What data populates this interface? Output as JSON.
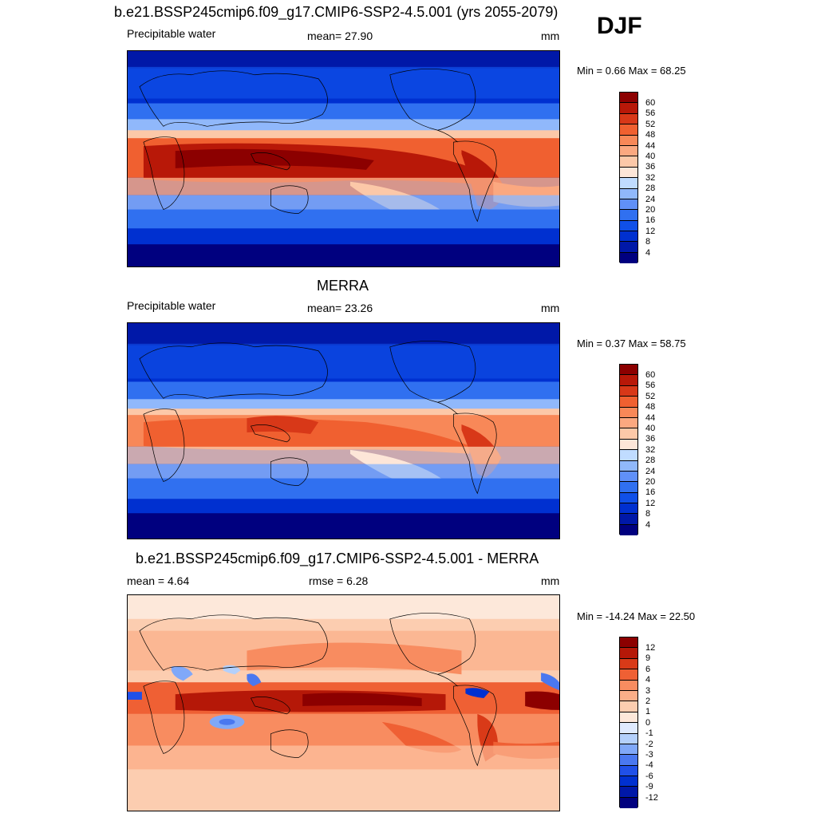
{
  "season": "DJF",
  "colors": {
    "abs_palette": [
      "#00007f",
      "#0018a8",
      "#0030d0",
      "#1050e8",
      "#3070f0",
      "#6090f8",
      "#90b8fb",
      "#c0dcff",
      "#fde6d8",
      "#fcc8a8",
      "#fba880",
      "#f88858",
      "#f06030",
      "#d83818",
      "#b81808",
      "#8c0000"
    ],
    "diff_palette": [
      "#00007f",
      "#0018a8",
      "#0030d0",
      "#2050e8",
      "#4a78f0",
      "#80a8f8",
      "#b4d0fb",
      "#dfeafe",
      "#fde8da",
      "#fccdb0",
      "#fbae88",
      "#f88c60",
      "#ef6034",
      "#d93a18",
      "#b51808",
      "#8c0000"
    ],
    "coast": "#000000"
  },
  "panels": [
    {
      "title": "b.e21.BSSP245cmip6.f09_g17.CMIP6-SSP2-4.5.001 (yrs 2055-2079)",
      "left_label": "Precipitable water",
      "center_label": "mean=  27.90",
      "right_label": "mm",
      "minmax": "Min =   0.66 Max =  68.25",
      "legend_ticks": [
        "60",
        "56",
        "52",
        "48",
        "44",
        "40",
        "36",
        "32",
        "28",
        "24",
        "20",
        "16",
        "12",
        "8",
        "4"
      ]
    },
    {
      "title": "MERRA",
      "left_label": "Precipitable water",
      "center_label": "mean=  23.26",
      "right_label": "mm",
      "minmax": "Min =   0.37 Max =  58.75",
      "legend_ticks": [
        "60",
        "56",
        "52",
        "48",
        "44",
        "40",
        "36",
        "32",
        "28",
        "24",
        "20",
        "16",
        "12",
        "8",
        "4"
      ]
    },
    {
      "title": "b.e21.BSSP245cmip6.f09_g17.CMIP6-SSP2-4.5.001 - MERRA",
      "left_label": "mean =   4.64",
      "center_label": "rmse =   6.28",
      "right_label": "mm",
      "minmax": "Min = -14.24 Max =  22.50",
      "legend_ticks": [
        "12",
        "9",
        "6",
        "4",
        "3",
        "2",
        "1",
        "0",
        "-1",
        "-2",
        "-3",
        "-4",
        "-6",
        "-9",
        "-12"
      ]
    }
  ]
}
